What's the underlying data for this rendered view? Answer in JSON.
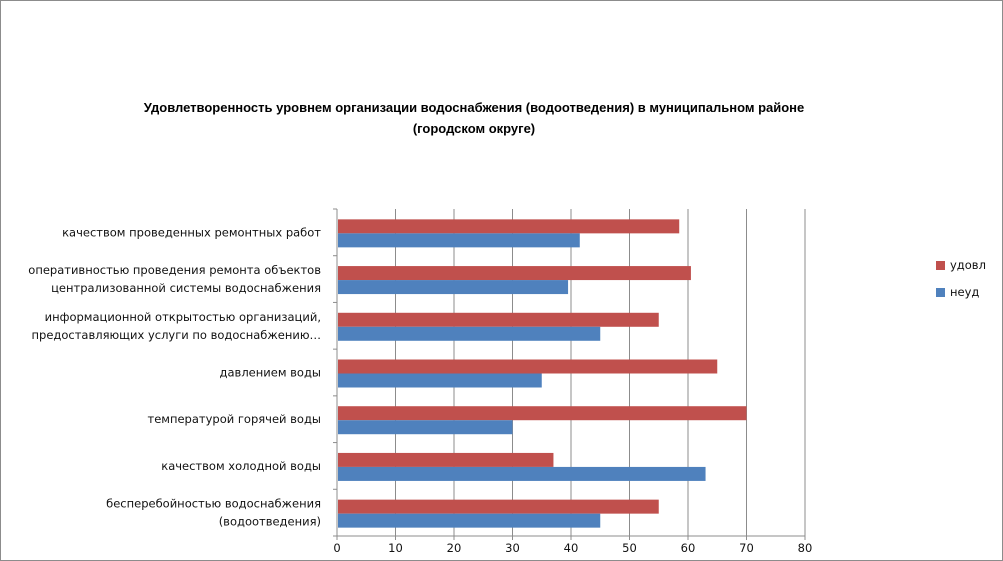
{
  "chart_data": {
    "type": "bar",
    "orientation": "horizontal",
    "title_lines": [
      "Удовлетворенность уровнем организации водоснабжения (водоотведения) в муниципальном районе",
      "(городском округе)"
    ],
    "categories": [
      [
        "качеством  проведенных  ремонтных работ"
      ],
      [
        "оперативностью  проведения  ремонта объектов",
        "централизованной системы водоснабжения"
      ],
      [
        "информационной открытостью организаций,",
        "предоставляющих услуги по водоснабжению…"
      ],
      [
        "давлением  воды"
      ],
      [
        "температурой  горячей воды"
      ],
      [
        "качеством  холодной воды"
      ],
      [
        "бесперебойностью  водоснабжения",
        "(водоотведения)"
      ]
    ],
    "series": [
      {
        "name": "удовл",
        "color": "#c0504d",
        "values": [
          58.5,
          60.5,
          55,
          65,
          70,
          37,
          55
        ]
      },
      {
        "name": "неуд",
        "color": "#4f81bd",
        "values": [
          41.5,
          39.5,
          45,
          35,
          30,
          63,
          45
        ]
      }
    ],
    "xlim": [
      0,
      80
    ],
    "xticks": [
      "0",
      "10",
      "20",
      "30",
      "40",
      "50",
      "60",
      "70",
      "80"
    ],
    "grid": true,
    "legend_position": "right"
  }
}
